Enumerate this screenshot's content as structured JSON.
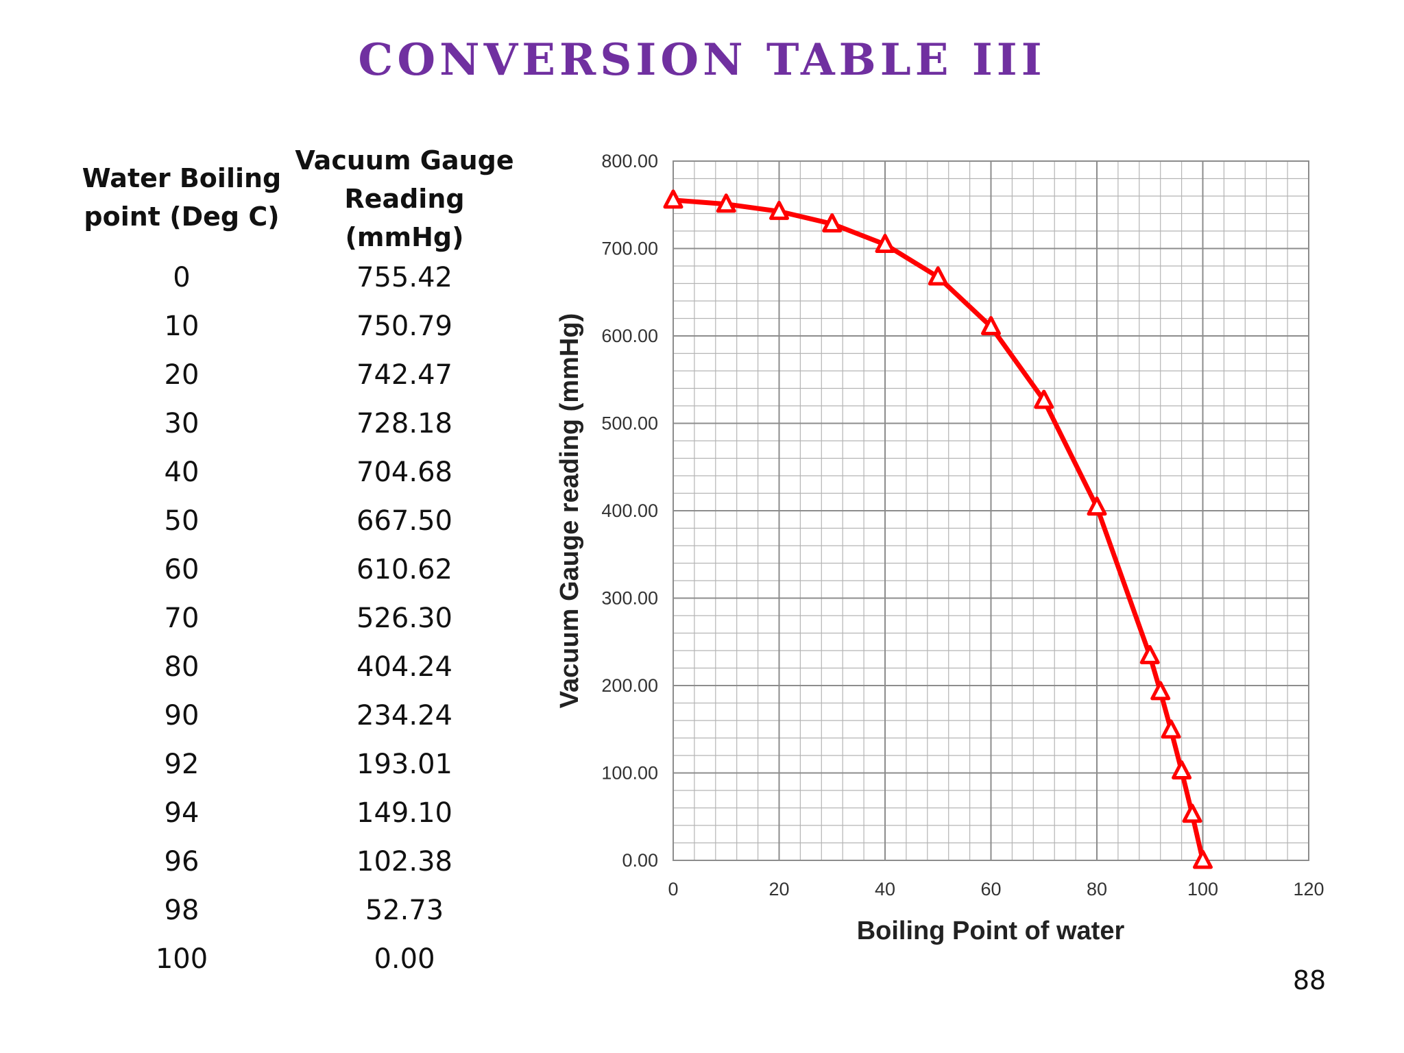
{
  "title": "CONVERSION TABLE III",
  "page_number": "88",
  "table": {
    "headers": {
      "boiling": [
        "Water Boiling",
        "point (Deg C)"
      ],
      "vacuum": [
        "Vacuum Gauge",
        "Reading",
        "(mmHg)"
      ]
    },
    "boiling_points": [
      "0",
      "10",
      "20",
      "30",
      "40",
      "50",
      "60",
      "70",
      "80",
      "90",
      "92",
      "94",
      "96",
      "98",
      "100"
    ],
    "gauge_readings": [
      "755.42",
      "750.79",
      "742.47",
      "728.18",
      "704.68",
      "667.50",
      "610.62",
      "526.30",
      "404.24",
      "234.24",
      "193.01",
      "149.10",
      "102.38",
      "52.73",
      "0.00"
    ]
  },
  "chart_data": {
    "type": "line",
    "title": "",
    "xlabel": "Boiling Point of water",
    "ylabel": "Vacuum Gauge reading (mmHg)",
    "xlim": [
      0,
      120
    ],
    "ylim": [
      0,
      800
    ],
    "grid": true,
    "marker": "triangle",
    "series_color": "#ff0000",
    "x_ticks": [
      "0",
      "20",
      "40",
      "60",
      "80",
      "100",
      "120"
    ],
    "y_ticks": [
      "0.00",
      "100.00",
      "200.00",
      "300.00",
      "400.00",
      "500.00",
      "600.00",
      "700.00",
      "800.00"
    ],
    "x": [
      0,
      10,
      20,
      30,
      40,
      50,
      60,
      70,
      80,
      90,
      92,
      94,
      96,
      98,
      100
    ],
    "y": [
      755.42,
      750.79,
      742.47,
      728.18,
      704.68,
      667.5,
      610.62,
      526.3,
      404.24,
      234.24,
      193.01,
      149.1,
      102.38,
      52.73,
      0.0
    ]
  },
  "colors": {
    "title": "#7030a0",
    "series": "#ff0000",
    "grid": "#8c8c8c"
  }
}
